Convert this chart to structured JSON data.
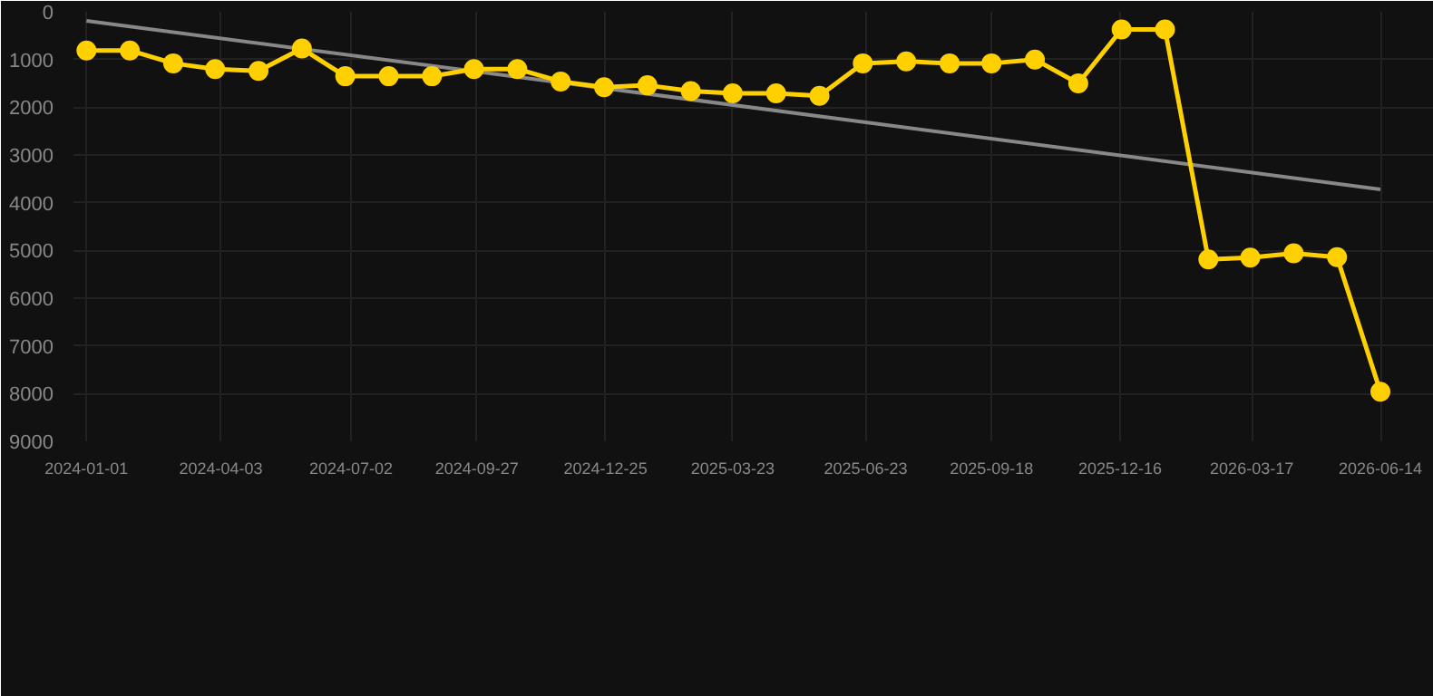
{
  "chart_data": {
    "type": "line",
    "x": [
      "2024-01-01",
      "2024-01-31",
      "2024-03-01",
      "2024-03-30",
      "2024-04-29",
      "2024-05-29",
      "2024-06-28",
      "2024-07-28",
      "2024-08-27",
      "2024-09-25",
      "2024-10-25",
      "2024-11-24",
      "2024-12-24",
      "2025-01-23",
      "2025-02-22",
      "2025-03-23",
      "2025-04-22",
      "2025-05-22",
      "2025-06-21",
      "2025-07-21",
      "2025-08-20",
      "2025-09-18",
      "2025-10-18",
      "2025-11-17",
      "2025-12-17",
      "2026-01-16",
      "2026-02-15",
      "2026-03-16",
      "2026-04-15",
      "2026-05-15",
      "2026-06-14"
    ],
    "series": [
      {
        "color": "#ffd000",
        "marker": "circle",
        "values": [
          810,
          810,
          1080,
          1200,
          1240,
          770,
          1350,
          1350,
          1350,
          1200,
          1200,
          1460,
          1580,
          1540,
          1660,
          1710,
          1710,
          1760,
          1080,
          1040,
          1080,
          1080,
          1000,
          1500,
          370,
          370,
          5190,
          5150,
          5060,
          5140,
          7960
        ]
      },
      {
        "type": "line",
        "color": "#888888",
        "marker": "none",
        "x": [
          "2024-01-01",
          "2026-06-14"
        ],
        "values": [
          190,
          3720
        ]
      }
    ],
    "xlim": [
      "2023-12-23",
      "2026-07-21"
    ],
    "ylim": [
      9000,
      0
    ],
    "xticks": [
      "2024-01-01",
      "2024-04-03",
      "2024-07-02",
      "2024-09-27",
      "2024-12-25",
      "2025-03-23",
      "2025-06-23",
      "2025-09-18",
      "2025-12-16",
      "2026-03-17",
      "2026-06-14"
    ],
    "yticks": [
      0,
      1000,
      2000,
      3000,
      4000,
      5000,
      6000,
      7000,
      8000,
      9000
    ],
    "grid": true
  }
}
